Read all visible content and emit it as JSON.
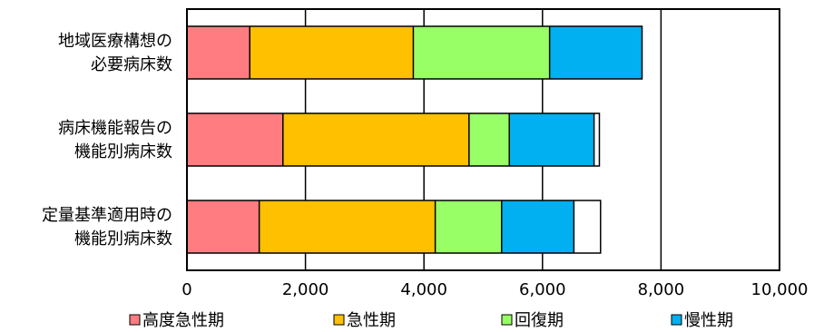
{
  "chart_data": {
    "type": "bar",
    "orientation": "horizontal",
    "stacked": true,
    "categories": [
      [
        "地域医療構想の",
        "必要病床数"
      ],
      [
        "病床機能報告の",
        "機能別病床数"
      ],
      [
        "定量基準適用時の",
        "機能別病床数"
      ]
    ],
    "series": [
      {
        "name": "高度急性期",
        "color": "#ff7c80",
        "values": [
          1060,
          1620,
          1220
        ]
      },
      {
        "name": "急性期",
        "color": "#ffc000",
        "values": [
          2760,
          3140,
          2970
        ]
      },
      {
        "name": "回復期",
        "color": "#99ff66",
        "values": [
          2300,
          680,
          1120
        ]
      },
      {
        "name": "慢性期",
        "color": "#00b0f0",
        "values": [
          1560,
          1430,
          1220
        ]
      },
      {
        "name": "",
        "color": "#ffffff",
        "values": [
          0,
          90,
          450
        ]
      }
    ],
    "xlim": [
      0,
      10000
    ],
    "x_ticks": [
      0,
      2000,
      4000,
      6000,
      8000,
      10000
    ],
    "x_tick_labels": [
      "0",
      "2,000",
      "4,000",
      "6,000",
      "8,000",
      "10,000"
    ],
    "grid": true,
    "legend_position": "bottom",
    "title": "",
    "xlabel": "",
    "ylabel": ""
  }
}
